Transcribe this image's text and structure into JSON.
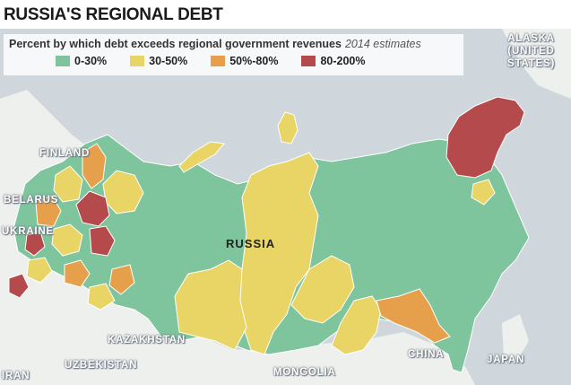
{
  "title": "RUSSIA'S REGIONAL DEBT",
  "legend": {
    "heading": "Percent by which debt exceeds regional government revenues",
    "note": "2014 estimates",
    "items": [
      {
        "label": "0-30%",
        "color": "#7ec49c"
      },
      {
        "label": "30-50%",
        "color": "#e9d565"
      },
      {
        "label": "50%-80%",
        "color": "#e6a04b"
      },
      {
        "label": "80-200%",
        "color": "#b44a4c"
      }
    ]
  },
  "colors": {
    "sea": "#cfd7dd",
    "land": "#eef0ee",
    "border": "#ffffff"
  },
  "labels": {
    "russia": "RUSSIA",
    "finland": "FINLAND",
    "belarus": "BELARUS",
    "ukraine": "UKRAINE",
    "kazakhstan": "KAZAKHSTAN",
    "uzbekistan": "UZBEKISTAN",
    "mongolia": "MONGOLIA",
    "china": "CHINA",
    "japan": "JAPAN",
    "iran": "IRAN",
    "alaska_line1": "ALASKA",
    "alaska_line2": "(UNITED",
    "alaska_line3": "STATES)"
  }
}
